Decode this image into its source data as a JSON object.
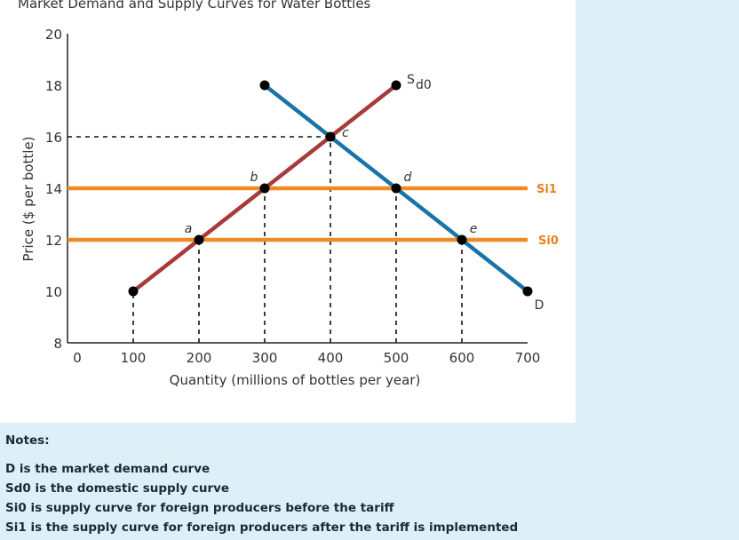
{
  "chart_data": {
    "type": "line",
    "title": "Market Demand and Supply Curves for Water Bottles",
    "xlabel": "Quantity (millions of bottles per year)",
    "ylabel": "Price ($ per bottle)",
    "xlim": [
      0,
      700
    ],
    "ylim": [
      8,
      20
    ],
    "x_ticks": [
      "0",
      "100",
      "200",
      "300",
      "400",
      "500",
      "600",
      "700"
    ],
    "y_ticks": [
      "8",
      "10",
      "12",
      "14",
      "16",
      "18",
      "20"
    ],
    "series": [
      {
        "name": "D",
        "color": "#1a73a8",
        "points": [
          [
            300,
            18
          ],
          [
            700,
            10
          ]
        ]
      },
      {
        "name": "Sd0",
        "color": "#a83a3a",
        "points": [
          [
            100,
            10
          ],
          [
            500,
            18
          ]
        ]
      },
      {
        "name": "Si1",
        "color": "#f08a24",
        "points": [
          [
            0,
            14
          ],
          [
            700,
            14
          ]
        ]
      },
      {
        "name": "Si0",
        "color": "#f08a24",
        "points": [
          [
            0,
            12
          ],
          [
            700,
            12
          ]
        ]
      }
    ],
    "curve_labels": {
      "demand": "D",
      "domestic_supply_main": "S",
      "domestic_supply_sub": "d0",
      "si1": "Si1",
      "si0": "Si0"
    },
    "labeled_points": [
      {
        "label": "a",
        "x": 200,
        "y": 12
      },
      {
        "label": "b",
        "x": 300,
        "y": 14
      },
      {
        "label": "c",
        "x": 400,
        "y": 16
      },
      {
        "label": "d",
        "x": 500,
        "y": 14
      },
      {
        "label": "e",
        "x": 600,
        "y": 12
      }
    ],
    "markers": [
      {
        "x": 100,
        "y": 10
      },
      {
        "x": 200,
        "y": 12
      },
      {
        "x": 300,
        "y": 14
      },
      {
        "x": 300,
        "y": 18
      },
      {
        "x": 400,
        "y": 16
      },
      {
        "x": 500,
        "y": 18
      },
      {
        "x": 500,
        "y": 14
      },
      {
        "x": 600,
        "y": 12
      },
      {
        "x": 700,
        "y": 10
      }
    ],
    "dashed_guides": [
      {
        "from": [
          0,
          16
        ],
        "to": [
          400,
          16
        ]
      },
      {
        "from": [
          100,
          8
        ],
        "to": [
          100,
          10
        ]
      },
      {
        "from": [
          200,
          8
        ],
        "to": [
          200,
          12
        ]
      },
      {
        "from": [
          300,
          8
        ],
        "to": [
          300,
          14
        ]
      },
      {
        "from": [
          400,
          8
        ],
        "to": [
          400,
          16
        ]
      },
      {
        "from": [
          500,
          8
        ],
        "to": [
          500,
          14
        ]
      },
      {
        "from": [
          600,
          8
        ],
        "to": [
          600,
          12
        ]
      }
    ],
    "grid": false
  },
  "notes": {
    "title": "Notes:",
    "items": [
      "D is the market demand curve",
      "Sd0 is the domestic supply curve",
      "Si0 is supply curve for foreign producers before the tariff",
      "Si1 is the supply curve for foreign producers after the tariff is implemented"
    ]
  }
}
